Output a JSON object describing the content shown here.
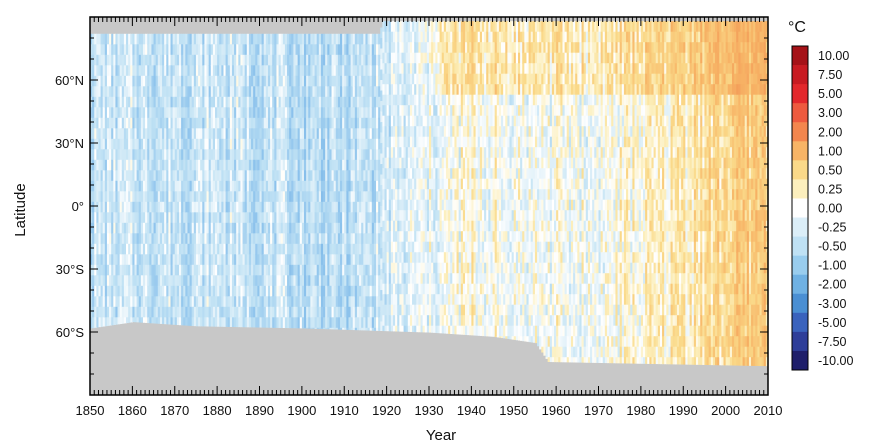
{
  "chart_data": {
    "type": "heatmap",
    "xlabel": "Year",
    "ylabel": "Latitude",
    "xlim": [
      1850,
      2010
    ],
    "ylim": [
      -90,
      90
    ],
    "x_ticks": [
      1850,
      1860,
      1870,
      1880,
      1890,
      1900,
      1910,
      1920,
      1930,
      1940,
      1950,
      1960,
      1970,
      1980,
      1990,
      2000,
      2010
    ],
    "x_tick_labels": [
      "1850",
      "1860",
      "1870",
      "1880",
      "1890",
      "1900",
      "1910",
      "1920",
      "1930",
      "1940",
      "1950",
      "1960",
      "1970",
      "1980",
      "1990",
      "2000",
      "2010"
    ],
    "y_ticks": [
      60,
      30,
      0,
      -30,
      -60
    ],
    "y_tick_labels": [
      "60°N",
      "30°N",
      "0°",
      "30°S",
      "60°S"
    ],
    "colorbar": {
      "unit": "°C",
      "labels": [
        "10.00",
        "7.50",
        "5.00",
        "3.00",
        "2.00",
        "1.00",
        "0.50",
        "0.25",
        "0.00",
        "-0.25",
        "-0.50",
        "-1.00",
        "-2.00",
        "-3.00",
        "-5.00",
        "-7.50",
        "-10.00"
      ],
      "colors": [
        "#a51218",
        "#c81b22",
        "#e3282c",
        "#ee5a3f",
        "#f3864e",
        "#f7b466",
        "#fad989",
        "#fcefbd",
        "#ffffff",
        "#dbeef8",
        "#bfe1f4",
        "#99cdee",
        "#6fb1e3",
        "#4a8fd3",
        "#3a63bd",
        "#2e3e99",
        "#1f1f6b"
      ],
      "missing_color": "#c8c8c8"
    },
    "missing_data_mask": {
      "north_boundary_latitude_by_year": [
        [
          1850,
          82
        ],
        [
          1918,
          82
        ],
        [
          1919,
          88
        ],
        [
          2010,
          88
        ]
      ],
      "south_boundary_latitude_by_year": [
        [
          1850,
          -58
        ],
        [
          1860,
          -55
        ],
        [
          1875,
          -57
        ],
        [
          1900,
          -58
        ],
        [
          1930,
          -60
        ],
        [
          1945,
          -62
        ],
        [
          1955,
          -65
        ],
        [
          1958,
          -74
        ],
        [
          2010,
          -76
        ]
      ]
    },
    "warming_trend": [
      {
        "year": 1850,
        "anomaly": -0.45
      },
      {
        "year": 1880,
        "anomaly": -0.4
      },
      {
        "year": 1910,
        "anomaly": -0.6
      },
      {
        "year": 1930,
        "anomaly": -0.15
      },
      {
        "year": 1940,
        "anomaly": 0.05
      },
      {
        "year": 1950,
        "anomaly": -0.05
      },
      {
        "year": 1970,
        "anomaly": -0.05
      },
      {
        "year": 1985,
        "anomaly": 0.2
      },
      {
        "year": 2000,
        "anomaly": 0.55
      },
      {
        "year": 2010,
        "anomaly": 0.75
      }
    ]
  }
}
